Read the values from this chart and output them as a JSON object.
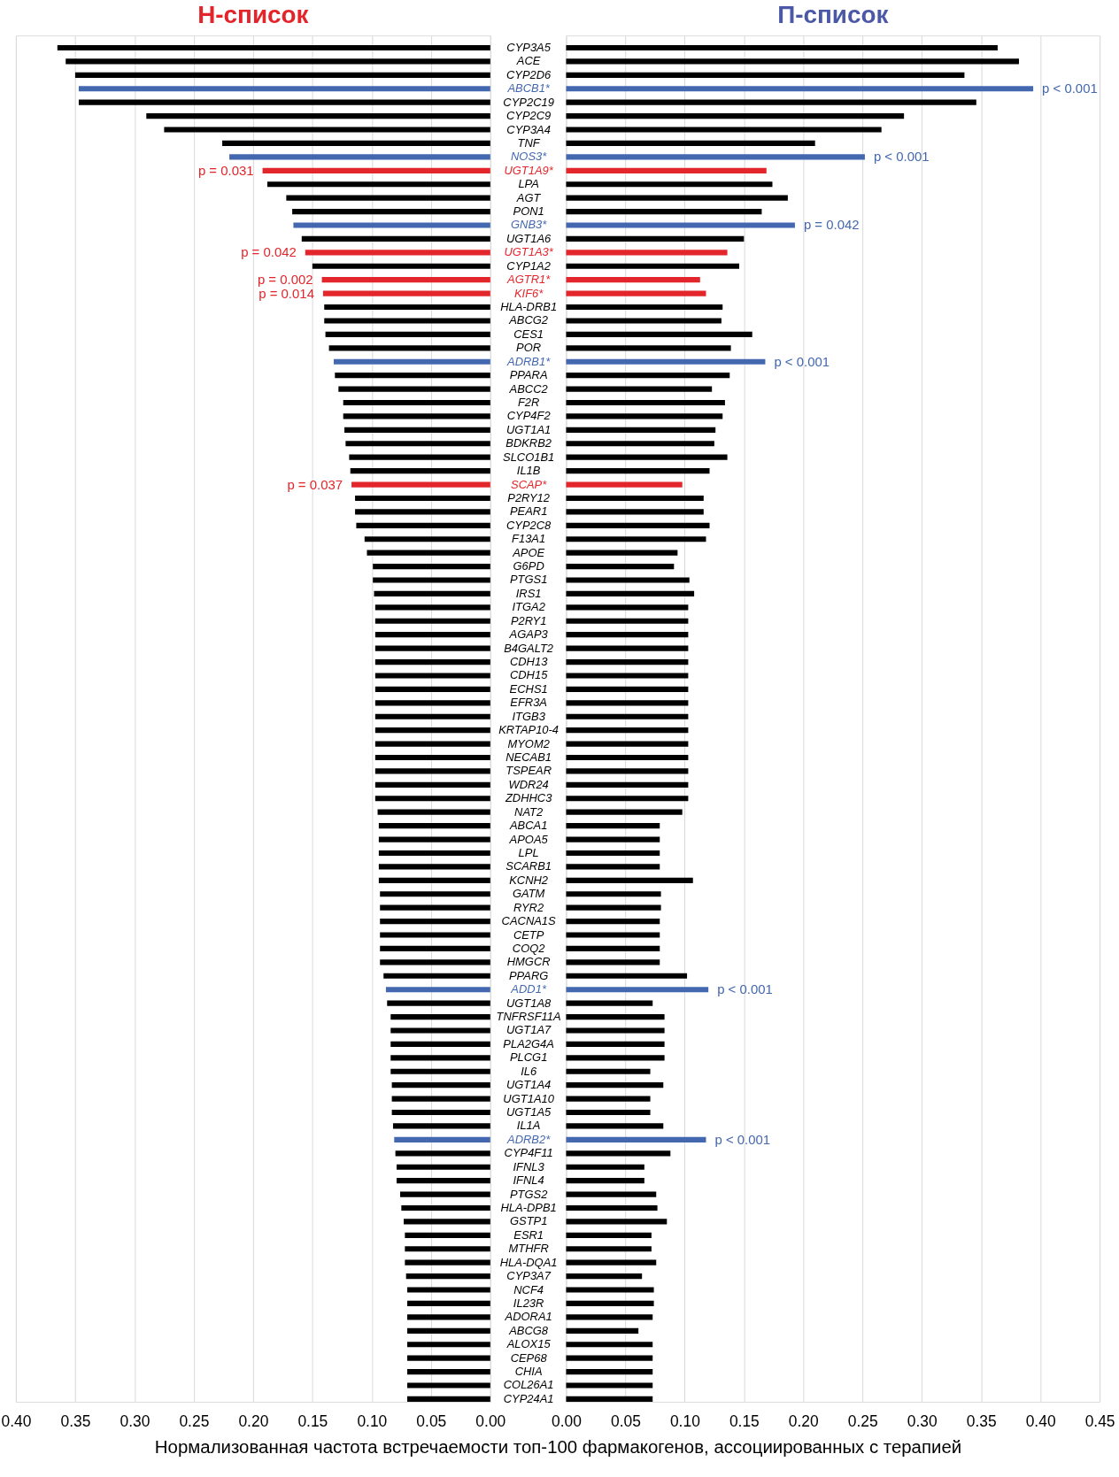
{
  "chart_data": [
    {
      "type": "bar",
      "orientation": "horizontal",
      "title": "Н-список",
      "xlabel": "Нормализованная частота встречаемости топ-100 фармакогенов, ассоциированных с терапией",
      "categories": [
        "CYP3A5",
        "ACE",
        "CYP2D6",
        "ABCB1*",
        "CYP2C19",
        "CYP2C9",
        "CYP3A4",
        "TNF",
        "NOS3*",
        "UGT1A9*",
        "LPA",
        "AGT",
        "PON1",
        "GNB3*",
        "UGT1A6",
        "UGT1A3*",
        "CYP1A2",
        "AGTR1*",
        "KIF6*",
        "HLA-DRB1",
        "ABCG2",
        "CES1",
        "POR",
        "ADRB1*",
        "PPARA",
        "ABCC2",
        "F2R",
        "CYP4F2",
        "UGT1A1",
        "BDKRB2",
        "SLCO1B1",
        "IL1B",
        "SCAP*",
        "P2RY12",
        "PEAR1",
        "CYP2C8",
        "F13A1",
        "APOE",
        "G6PD",
        "PTGS1",
        "IRS1",
        "ITGA2",
        "P2RY1",
        "AGAP3",
        "B4GALT2",
        "CDH13",
        "CDH15",
        "ECHS1",
        "EFR3A",
        "ITGB3",
        "KRTAP10-4",
        "MYOM2",
        "NECAB1",
        "TSPEAR",
        "WDR24",
        "ZDHHC3",
        "NAT2",
        "ABCA1",
        "APOA5",
        "LPL",
        "SCARB1",
        "KCNH2",
        "GATM",
        "RYR2",
        "CACNA1S",
        "CETP",
        "COQ2",
        "HMGCR",
        "PPARG",
        "ADD1*",
        "UGT1A8",
        "TNFRSF11A",
        "UGT1A7",
        "PLA2G4A",
        "PLCG1",
        "IL6",
        "UGT1A4",
        "UGT1A10",
        "UGT1A5",
        "IL1A",
        "ADRB2*",
        "CYP4F11",
        "IFNL3",
        "IFNL4",
        "PTGS2",
        "HLA-DPB1",
        "GSTP1",
        "ESR1",
        "MTHFR",
        "HLA-DQA1",
        "CYP3A7",
        "NCF4",
        "IL23R",
        "ADORA1",
        "ABCG8",
        "ALOX15",
        "CEP68",
        "CHIA",
        "COL26A1",
        "CYP24A1"
      ],
      "values": [
        0.365,
        0.358,
        0.35,
        0.347,
        0.347,
        0.29,
        0.275,
        0.226,
        0.22,
        0.192,
        0.188,
        0.172,
        0.167,
        0.166,
        0.159,
        0.156,
        0.15,
        0.142,
        0.141,
        0.14,
        0.14,
        0.139,
        0.136,
        0.132,
        0.131,
        0.128,
        0.124,
        0.124,
        0.123,
        0.122,
        0.119,
        0.118,
        0.117,
        0.114,
        0.114,
        0.113,
        0.106,
        0.104,
        0.099,
        0.099,
        0.098,
        0.097,
        0.097,
        0.097,
        0.097,
        0.097,
        0.097,
        0.097,
        0.097,
        0.097,
        0.097,
        0.097,
        0.097,
        0.097,
        0.097,
        0.097,
        0.095,
        0.094,
        0.094,
        0.094,
        0.094,
        0.094,
        0.093,
        0.093,
        0.093,
        0.093,
        0.093,
        0.093,
        0.09,
        0.088,
        0.087,
        0.084,
        0.084,
        0.084,
        0.084,
        0.084,
        0.083,
        0.083,
        0.083,
        0.082,
        0.081,
        0.08,
        0.079,
        0.079,
        0.076,
        0.075,
        0.073,
        0.072,
        0.072,
        0.072,
        0.071,
        0.07,
        0.07,
        0.07,
        0.07,
        0.07,
        0.07,
        0.07,
        0.07,
        0.07
      ],
      "colors": [
        "#000000",
        "#000000",
        "#000000",
        "#4468b0",
        "#000000",
        "#000000",
        "#000000",
        "#000000",
        "#4468b0",
        "#e3262b",
        "#000000",
        "#000000",
        "#000000",
        "#4468b0",
        "#000000",
        "#e3262b",
        "#000000",
        "#e3262b",
        "#e3262b",
        "#000000",
        "#000000",
        "#000000",
        "#000000",
        "#4468b0",
        "#000000",
        "#000000",
        "#000000",
        "#000000",
        "#000000",
        "#000000",
        "#000000",
        "#000000",
        "#e3262b",
        "#000000",
        "#000000",
        "#000000",
        "#000000",
        "#000000",
        "#000000",
        "#000000",
        "#000000",
        "#000000",
        "#000000",
        "#000000",
        "#000000",
        "#000000",
        "#000000",
        "#000000",
        "#000000",
        "#000000",
        "#000000",
        "#000000",
        "#000000",
        "#000000",
        "#000000",
        "#000000",
        "#000000",
        "#000000",
        "#000000",
        "#000000",
        "#000000",
        "#000000",
        "#000000",
        "#000000",
        "#000000",
        "#000000",
        "#000000",
        "#000000",
        "#000000",
        "#4468b0",
        "#000000",
        "#000000",
        "#000000",
        "#000000",
        "#000000",
        "#000000",
        "#000000",
        "#000000",
        "#000000",
        "#000000",
        "#4468b0",
        "#000000",
        "#000000",
        "#000000",
        "#000000",
        "#000000",
        "#000000",
        "#000000",
        "#000000",
        "#000000",
        "#000000",
        "#000000",
        "#000000",
        "#000000",
        "#000000",
        "#000000",
        "#000000",
        "#000000",
        "#000000",
        "#000000"
      ],
      "xlim": [
        0.4,
        0.0
      ],
      "xticks": [
        {
          "value": 0.4,
          "label": "0.40"
        },
        {
          "value": 0.35,
          "label": "0.35"
        },
        {
          "value": 0.3,
          "label": "0.30"
        },
        {
          "value": 0.25,
          "label": "0.25"
        },
        {
          "value": 0.2,
          "label": "0.20"
        },
        {
          "value": 0.15,
          "label": "0.15"
        },
        {
          "value": 0.1,
          "label": "0.10"
        },
        {
          "value": 0.05,
          "label": "0.05"
        },
        {
          "value": 0.0,
          "label": "0.00"
        }
      ],
      "grid": "x",
      "annotations": [
        {
          "text": "p = 0.031",
          "x": 0.192,
          "y": "UGT1A9*"
        },
        {
          "text": "p = 0.042",
          "x": 0.156,
          "y": "UGT1A3*"
        },
        {
          "text": "p = 0.002",
          "x": 0.142,
          "y": "AGTR1*"
        },
        {
          "text": "p = 0.014",
          "x": 0.141,
          "y": "KIF6*"
        },
        {
          "text": "p = 0.037",
          "x": 0.117,
          "y": "SCAP*"
        }
      ]
    },
    {
      "type": "bar",
      "orientation": "horizontal",
      "title": "П-список",
      "tick_labels": "x",
      "categories": [
        "CYP3A5",
        "ACE",
        "CYP2D6",
        "ABCB1*",
        "CYP2C19",
        "CYP2C9",
        "CYP3A4",
        "TNF",
        "NOS3*",
        "UGT1A9*",
        "LPA",
        "AGT",
        "PON1",
        "GNB3*",
        "UGT1A6",
        "UGT1A3*",
        "CYP1A2",
        "AGTR1*",
        "KIF6*",
        "HLA-DRB1",
        "ABCG2",
        "CES1",
        "POR",
        "ADRB1*",
        "PPARA",
        "ABCC2",
        "F2R",
        "CYP4F2",
        "UGT1A1",
        "BDKRB2",
        "SLCO1B1",
        "IL1B",
        "SCAP*",
        "P2RY12",
        "PEAR1",
        "CYP2C8",
        "F13A1",
        "APOE",
        "G6PD",
        "PTGS1",
        "IRS1",
        "ITGA2",
        "P2RY1",
        "AGAP3",
        "B4GALT2",
        "CDH13",
        "CDH15",
        "ECHS1",
        "EFR3A",
        "ITGB3",
        "KRTAP10-4",
        "MYOM2",
        "NECAB1",
        "TSPEAR",
        "WDR24",
        "ZDHHC3",
        "NAT2",
        "ABCA1",
        "APOA5",
        "LPL",
        "SCARB1",
        "KCNH2",
        "GATM",
        "RYR2",
        "CACNA1S",
        "CETP",
        "COQ2",
        "HMGCR",
        "PPARG",
        "ADD1*",
        "UGT1A8",
        "TNFRSF11A",
        "UGT1A7",
        "PLA2G4A",
        "PLCG1",
        "IL6",
        "UGT1A4",
        "UGT1A10",
        "UGT1A5",
        "IL1A",
        "ADRB2*",
        "CYP4F11",
        "IFNL3",
        "IFNL4",
        "PTGS2",
        "HLA-DPB1",
        "GSTP1",
        "ESR1",
        "MTHFR",
        "HLA-DQA1",
        "CYP3A7",
        "NCF4",
        "IL23R",
        "ADORA1",
        "ABCG8",
        "ALOX15",
        "CEP68",
        "CHIA",
        "COL26A1",
        "CYP24A1"
      ],
      "values": [
        0.364,
        0.382,
        0.336,
        0.394,
        0.346,
        0.285,
        0.266,
        0.21,
        0.252,
        0.169,
        0.174,
        0.187,
        0.165,
        0.193,
        0.15,
        0.136,
        0.146,
        0.113,
        0.118,
        0.132,
        0.131,
        0.157,
        0.139,
        0.168,
        0.138,
        0.123,
        0.134,
        0.132,
        0.126,
        0.125,
        0.136,
        0.121,
        0.098,
        0.116,
        0.116,
        0.121,
        0.118,
        0.094,
        0.091,
        0.104,
        0.108,
        0.103,
        0.103,
        0.103,
        0.103,
        0.103,
        0.103,
        0.103,
        0.103,
        0.103,
        0.103,
        0.103,
        0.103,
        0.103,
        0.103,
        0.103,
        0.098,
        0.079,
        0.079,
        0.079,
        0.079,
        0.107,
        0.08,
        0.08,
        0.079,
        0.079,
        0.079,
        0.079,
        0.102,
        0.12,
        0.073,
        0.083,
        0.083,
        0.083,
        0.083,
        0.071,
        0.082,
        0.071,
        0.071,
        0.082,
        0.118,
        0.088,
        0.066,
        0.066,
        0.076,
        0.077,
        0.085,
        0.072,
        0.072,
        0.076,
        0.064,
        0.074,
        0.074,
        0.073,
        0.061,
        0.073,
        0.073,
        0.073,
        0.073,
        0.073
      ],
      "colors": [
        "#000000",
        "#000000",
        "#000000",
        "#4468b0",
        "#000000",
        "#000000",
        "#000000",
        "#000000",
        "#4468b0",
        "#e3262b",
        "#000000",
        "#000000",
        "#000000",
        "#4468b0",
        "#000000",
        "#e3262b",
        "#000000",
        "#e3262b",
        "#e3262b",
        "#000000",
        "#000000",
        "#000000",
        "#000000",
        "#4468b0",
        "#000000",
        "#000000",
        "#000000",
        "#000000",
        "#000000",
        "#000000",
        "#000000",
        "#000000",
        "#e3262b",
        "#000000",
        "#000000",
        "#000000",
        "#000000",
        "#000000",
        "#000000",
        "#000000",
        "#000000",
        "#000000",
        "#000000",
        "#000000",
        "#000000",
        "#000000",
        "#000000",
        "#000000",
        "#000000",
        "#000000",
        "#000000",
        "#000000",
        "#000000",
        "#000000",
        "#000000",
        "#000000",
        "#000000",
        "#000000",
        "#000000",
        "#000000",
        "#000000",
        "#000000",
        "#000000",
        "#000000",
        "#000000",
        "#000000",
        "#000000",
        "#000000",
        "#000000",
        "#4468b0",
        "#000000",
        "#000000",
        "#000000",
        "#000000",
        "#000000",
        "#000000",
        "#000000",
        "#000000",
        "#000000",
        "#000000",
        "#4468b0",
        "#000000",
        "#000000",
        "#000000",
        "#000000",
        "#000000",
        "#000000",
        "#000000",
        "#000000",
        "#000000",
        "#000000",
        "#000000",
        "#000000",
        "#000000",
        "#000000",
        "#000000",
        "#000000",
        "#000000",
        "#000000",
        "#000000"
      ],
      "xlim": [
        0.0,
        0.45
      ],
      "xticks": [
        {
          "value": 0.0,
          "label": "0.00"
        },
        {
          "value": 0.05,
          "label": "0.05"
        },
        {
          "value": 0.1,
          "label": "0.10"
        },
        {
          "value": 0.15,
          "label": "0.15"
        },
        {
          "value": 0.2,
          "label": "0.20"
        },
        {
          "value": 0.25,
          "label": "0.25"
        },
        {
          "value": 0.3,
          "label": "0.30"
        },
        {
          "value": 0.35,
          "label": "0.35"
        },
        {
          "value": 0.4,
          "label": "0.40"
        },
        {
          "value": 0.45,
          "label": "0.45"
        }
      ],
      "grid": "x",
      "annotations": [
        {
          "text": "p < 0.001",
          "x": 0.394,
          "y": "ABCB1*"
        },
        {
          "text": "p < 0.001",
          "x": 0.252,
          "y": "NOS3*"
        },
        {
          "text": "p = 0.042",
          "x": 0.193,
          "y": "GNB3*"
        },
        {
          "text": "p < 0.001",
          "x": 0.168,
          "y": "ADRB1*"
        },
        {
          "text": "p < 0.001",
          "x": 0.12,
          "y": "ADD1*"
        },
        {
          "text": "p < 0.001",
          "x": 0.118,
          "y": "ADRB2*"
        }
      ]
    }
  ]
}
